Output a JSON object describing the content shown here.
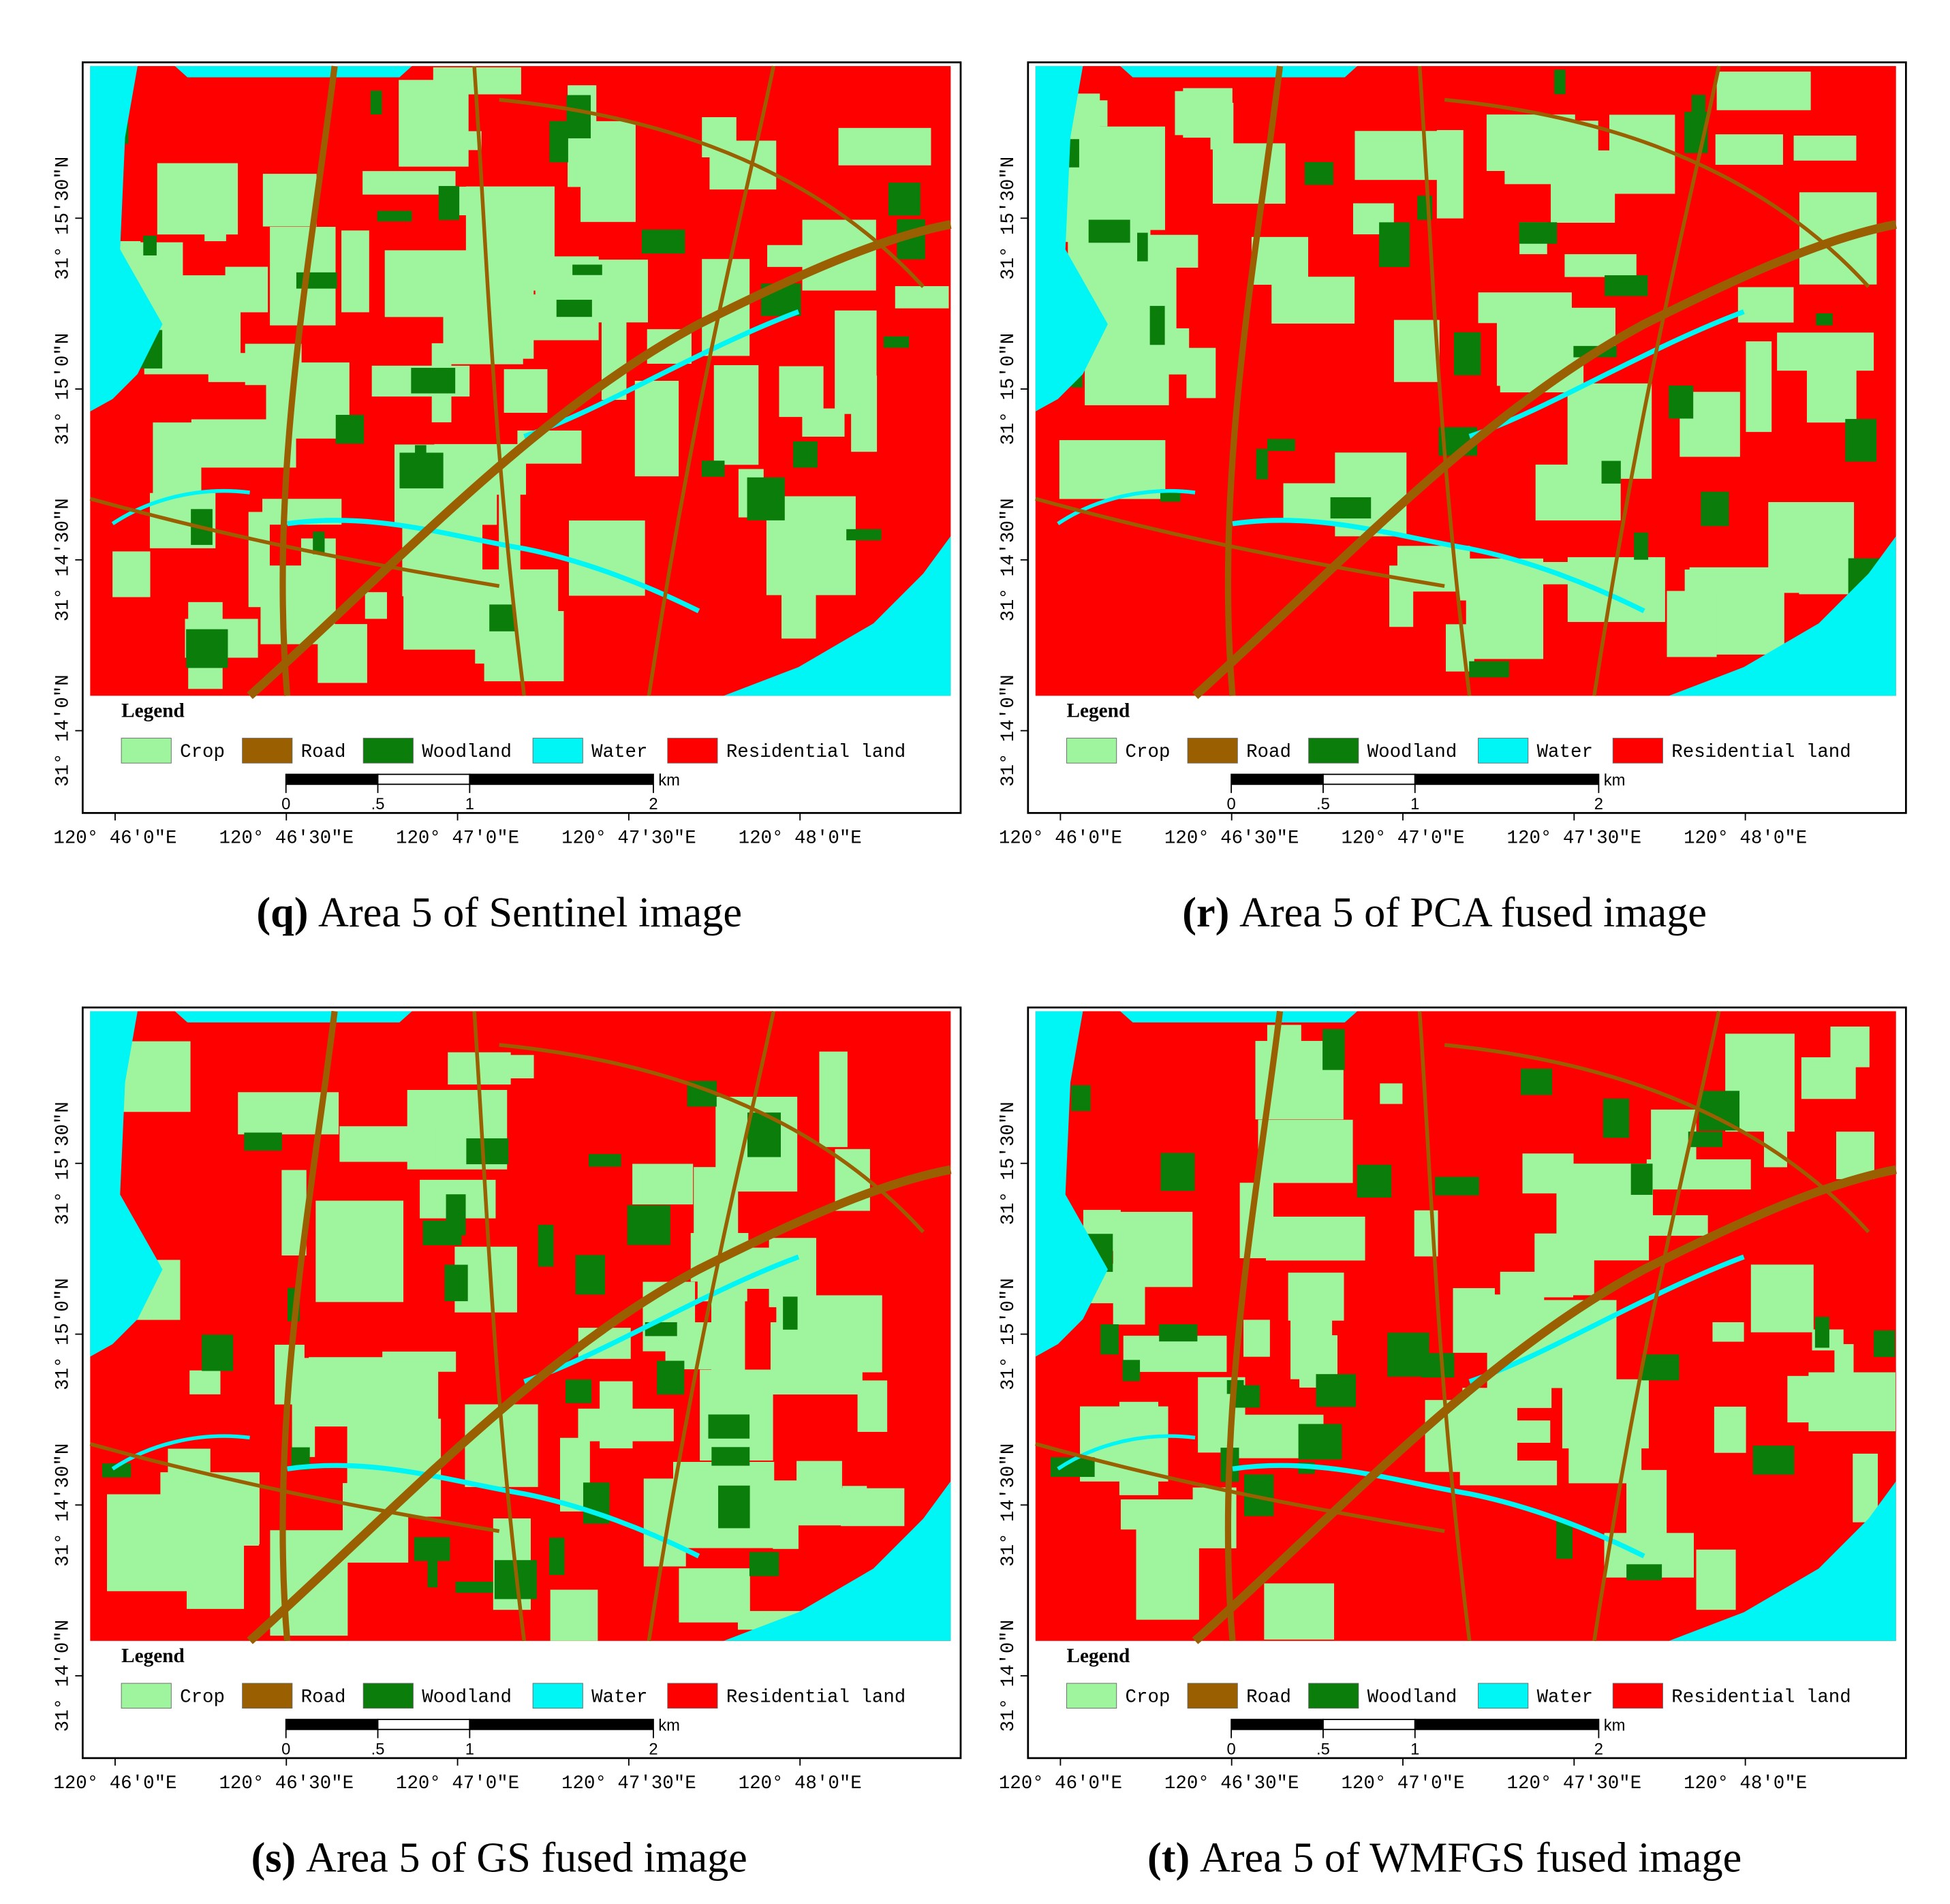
{
  "panels": [
    {
      "label": "(q)",
      "caption": "Area 5 of Sentinel image"
    },
    {
      "label": "(r)",
      "caption": "Area 5 of PCA fused image"
    },
    {
      "label": "(s)",
      "caption": "Area 5 of GS fused image"
    },
    {
      "label": "(t)",
      "caption": "Area 5 of WMFGS fused image"
    }
  ],
  "legend": {
    "title": "Legend",
    "items": [
      {
        "name": "Crop",
        "color": "#9ef59e"
      },
      {
        "name": "Road",
        "color": "#9a5f00"
      },
      {
        "name": "Woodland",
        "color": "#0a7d0a"
      },
      {
        "name": "Water",
        "color": "#00f5f5"
      },
      {
        "name": "Residential land",
        "color": "#ff0000"
      }
    ]
  },
  "scale_bar": {
    "ticks": [
      0,
      {
        "value": 0.5,
        "label": ".5"
      },
      1,
      2
    ],
    "unit": "km"
  },
  "lat_labels": [
    "31° 14′0″N",
    "31° 14′30″N",
    "31° 15′0″N",
    "31° 15′30″N"
  ],
  "lon_labels": [
    "120° 46′0″E",
    "120° 46′30″E",
    "120° 47′0″E",
    "120° 47′30″E",
    "120° 48′0″E"
  ]
}
